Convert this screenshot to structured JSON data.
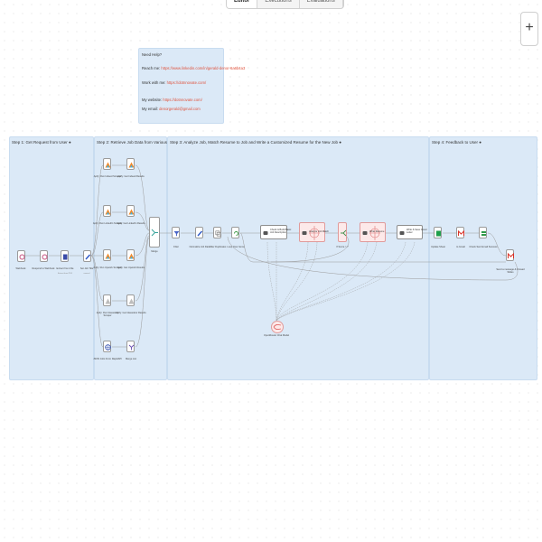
{
  "tabs": [
    "Editor",
    "Executions",
    "Evaluations"
  ],
  "zoom_label": "+",
  "help": {
    "title": "Need Help?",
    "reach_label": "Reach me:",
    "reach_link": "https://www.linkedin.com/in/gerald-denor-6a6b4a3",
    "work_label": "Work with me:",
    "work_link": "https://dotnnovate.com/",
    "website_label": "My website:",
    "website_link": "https://dotnnovate.com/",
    "email_label": "My email:",
    "email_link": "denorgerald@gmail.com"
  },
  "sections": {
    "step1": "Step 1: Get Request from User ●",
    "step2": "Step 2: Retrieve Job Data from Various Job Boards Via APIs ●",
    "step3": "Step 3: Analyze Job, Match Resume to Job and Write a Customized Resume for the New Job ●",
    "step4": "Step 4: Feedback to User ●"
  },
  "nodes": {
    "webhook": "Webhook",
    "respond": "Respond to Webhook",
    "extract_pdf": "Extract from File",
    "extract_pdf_sub": "Extract from PDF",
    "set_job_title": "Set Job Title",
    "set_job_title_sub": "manual",
    "apify_indeed": "Apify: Run Indeed Scraper",
    "apify_indeed_get": "Apify: Get Indeed Results",
    "apify_linkedin": "Apify: Run LinkedIn Scraper",
    "apify_linkedin_get": "Apify: Get LinkedIn Results",
    "apify_upwork": "Apify: Run Upwork Scraper",
    "apify_upwork_get": "Apify: Get Upwork Results",
    "apify_glassdoor": "Apify: Run Glassdoor Scraper",
    "apify_glassdoor_get": "Apify: Get Glassdoor Results",
    "jsearch": "JSON Jobs From RapidAPI",
    "merge_jsearch": "Merge List",
    "merge": "Merge",
    "filter": "Filter",
    "normalize": "Normalize Job Data",
    "remove_dup": "Filter Duplicates",
    "loop": "Loop Over Items",
    "check_data": "Check & Build Basic Job Description",
    "analyze": "Analyze Job Match",
    "ifscore": "If Score > 7",
    "rewrite": "Write Resume",
    "write_to_doc": "Write & Save Cover Letter",
    "update_sheet": "Update Sheet",
    "gmail": "to Gmail",
    "check_sent": "Check Sent Email Success",
    "send_msg": "Send a message & Unread Slides",
    "chat_model": "OpenRouter Chat Model"
  }
}
